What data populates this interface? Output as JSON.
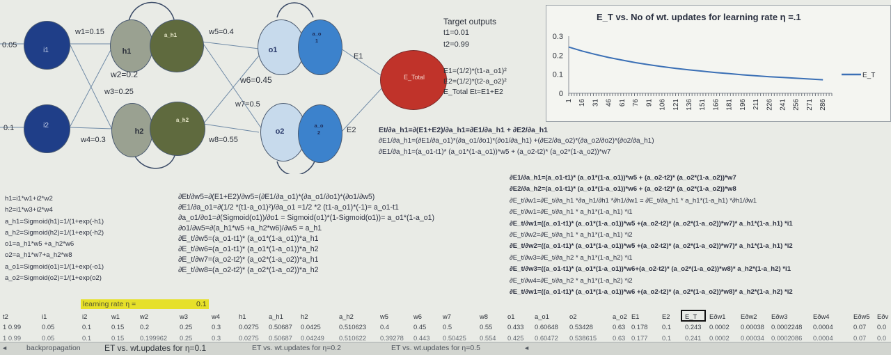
{
  "network": {
    "input_i1": "0.05",
    "input_i2": "0.1",
    "nodes": {
      "i1": "i1",
      "i2": "i2",
      "h1": "h1",
      "h2": "h2",
      "a_h1": "a_h1",
      "a_h2": "a_h2",
      "o1": "o1",
      "o2": "o2",
      "a_o1": "a_o\n1",
      "a_o2": "a_o\n2",
      "e_total": "E_Total"
    },
    "weights": {
      "w1": "w1=0.15",
      "w2": "w2=0.2",
      "w3": "w3=0.25",
      "w4": "w4=0.3",
      "w5": "w5=0.4",
      "w6": "w6=0.45",
      "w7": "w7=0.5",
      "w8": "w8=0.55"
    },
    "e1": "E1",
    "e2": "E2"
  },
  "targets": {
    "title": "Target outputs",
    "t1": "t1=0.01",
    "t2": "t2=0.99",
    "e1_eq": "E1=(1/2)*(t1-a_o1)²",
    "e2_eq": "E2=(1/2)*(t2-a_o2)²",
    "etotal_eq": "E_Total Et=E1+E2"
  },
  "chart_data": {
    "type": "line",
    "title": "E_T vs. No of wt. updates for learning rate η =.1",
    "yticks": [
      "0.3",
      "0.2",
      "0.1",
      "0"
    ],
    "ylim": [
      0,
      0.3
    ],
    "xticks": [
      "1",
      "16",
      "31",
      "46",
      "61",
      "76",
      "91",
      "106",
      "121",
      "136",
      "151",
      "166",
      "181",
      "196",
      "211",
      "226",
      "241",
      "256",
      "271",
      "286"
    ],
    "legend": "E_T",
    "legend_position": "right",
    "series": [
      {
        "name": "E_T",
        "x": [
          1,
          16,
          31,
          46,
          61,
          76,
          91,
          106,
          121,
          136,
          151,
          166,
          181,
          196,
          211,
          226,
          241,
          256,
          271,
          286
        ],
        "values": [
          0.243,
          0.222,
          0.204,
          0.188,
          0.174,
          0.161,
          0.15,
          0.14,
          0.131,
          0.123,
          0.116,
          0.109,
          0.103,
          0.097,
          0.092,
          0.087,
          0.083,
          0.079,
          0.075,
          0.071
        ]
      }
    ],
    "color": "#3a6fb5"
  },
  "deriv_top": [
    "Et/∂a_h1=∂(E1+E2)/∂a_h1=∂E1/∂a_h1 + ∂E2/∂a_h1",
    "∂E1/∂a_h1=(∂E1/∂a_o1)*(∂a_o1/∂o1)*(∂o1/∂a_h1) +(∂E2/∂a_o2)*(∂a_o2/∂o2)*(∂o2/∂a_h1)",
    "∂E1/∂a_h1=(a_o1-t1)* (a_o1*(1-a_o1))*w5 +  (a_o2-t2)* (a_o2*(1-a_o2))*w7"
  ],
  "left_eqs": [
    "h1=i1*w1+i2*w2",
    "h2=i1*w3+i2*w4",
    "a_h1=Sigmoid(h1)=1/(1+exp(-h1)",
    "a_h2=Sigmoid(h2)=1/(1+exp(-h2)",
    "o1=a_h1*w5 +a_h2*w6",
    "o2=a_h1*w7+a_h2*w8",
    "a_o1=Sigmoid(o1)=1/(1+exp(-o1)",
    "a_o2=Sigmoid(o2)=1/(1+exp(o2)"
  ],
  "mid_eqs": [
    "∂Et/∂w5=∂(E1+E2)/∂w5=(∂E1/∂a_o1)*(∂a_o1/∂o1)*(∂o1/∂w5)",
    "∂E1/∂a_o1=∂(1/2 *(t1-a_o1)²)/∂a_o1 =1/2 *2 (t1-a_o1)*(-1)= a_o1-t1",
    "∂a_o1/∂o1=∂(Sigmoid(o1))/∂o1 = Sigmoid(o1)*(1-Sigmoid(o1))= a_o1*(1-a_o1)",
    "∂o1/∂w5=∂(a_h1*w5 +a_h2*w6)/∂w5 = a_h1",
    "∂E_t/∂w5=(a_o1-t1)* (a_o1*(1-a_o1))*a_h1",
    "∂E_t/∂w6=(a_o1-t1)* (a_o1*(1-a_o1))*a_h2",
    "∂E_t/∂w7=(a_o2-t2)* (a_o2*(1-a_o2))*a_h1",
    "∂E_t/∂w8=(a_o2-t2)* (a_o2*(1-a_o2))*a_h2"
  ],
  "right_eqs": [
    "∂E1/∂a_h1=(a_o1-t1)* (a_o1*(1-a_o1))*w5  +   (a_o2-t2)* (a_o2*(1-a_o2))*w7",
    "∂E2/∂a_h2=(a_o1-t1)* (a_o1*(1-a_o1))*w6  +   (a_o2-t2)* (a_o2*(1-a_o2))*w8",
    "∂E_t/∂w1=∂E_t/∂a_h1 *∂a_h1/∂h1 *∂h1/∂w1 = ∂E_t/∂a_h1 * a_h1*(1-a_h1) *∂h1/∂w1",
    "∂E_t/∂w1=∂E_t/∂a_h1 * a_h1*(1-a_h1) *i1",
    "∂E_t/∂w1=((a_o1-t1)* (a_o1*(1-a_o1))*w5 +(a_o2-t2)* (a_o2*(1-a_o2))*w7)* a_h1*(1-a_h1) *i1",
    "∂E_t/∂w2=∂E_t/∂a_h1 * a_h1*(1-a_h1) *i2",
    "∂E_t/∂w2=((a_o1-t1)* (a_o1*(1-a_o1))*w5 +(a_o2-t2)* (a_o2*(1-a_o2))*w7)* a_h1*(1-a_h1) *i2",
    "∂E_t/∂w3=∂E_t/∂a_h2 * a_h1*(1-a_h2) *i1",
    "∂E_t/∂w3=((a_o1-t1)* (a_o1*(1-a_o1))*w6+(a_o2-t2)* (a_o2*(1-a_o2))*w8)* a_h2*(1-a_h2) *i1",
    "∂E_t/∂w4=∂E_t/∂a_h2 * a_h1*(1-a_h2) *i2",
    "∂E_t/∂w1=((a_o1-t1)* (a_o1*(1-a_o1))*w6 +(a_o2-t2)* (a_o2*(1-a_o2))*w8)* a_h2*(1-a_h2) *i2"
  ],
  "learning_rate": {
    "label": "learning rate  η =",
    "value": "0.1"
  },
  "table": {
    "headers": [
      "t2",
      "i1",
      "i2",
      "w1",
      "w2",
      "w3",
      "w4",
      "h1",
      "a_h1",
      "h2",
      "a_h2",
      "w5",
      "w6",
      "w7",
      "w8",
      "o1",
      "a_o1",
      "o2",
      "a_o2",
      "E1",
      "E2",
      "E_T",
      "Eðw1",
      "Eðw2",
      "Eðw3",
      "Eðw4",
      "Eðw5",
      "Eðv"
    ],
    "row1": [
      "1  0.99",
      "0.05",
      "0.1",
      "0.15",
      "0.2",
      "0.25",
      "0.3",
      "0.0275",
      "0.50687",
      "0.0425",
      "0.510623",
      "0.4",
      "0.45",
      "0.5",
      "0.55",
      "0.433",
      "0.60648",
      "0.53428",
      "0.63",
      "0.178",
      "0.1",
      "0.243",
      "0.0002",
      "0.00038",
      "0.0002248",
      "0.0004",
      "0.07",
      "0.0"
    ],
    "row2": [
      "1  0.99",
      "0.05",
      "0.1",
      "0.15",
      "0.199962",
      "0.25",
      "0.3",
      "0.0275",
      "0.50687",
      "0.04249",
      "0.510622",
      "0.39278",
      "0.443",
      "0.50425",
      "0.554",
      "0.425",
      "0.60472",
      "0.538615",
      "0.63",
      "0.177",
      "0.1",
      "0.241",
      "0.0002",
      "0.00034",
      "0.0002086",
      "0.0004",
      "0.07",
      "0.0"
    ]
  },
  "tabs": [
    "backpropagation",
    "ET vs. wt.updates for η=0.1",
    "ET vs. wt.updates for η=0.2",
    "ET vs. wt.updates for η=0.5"
  ]
}
